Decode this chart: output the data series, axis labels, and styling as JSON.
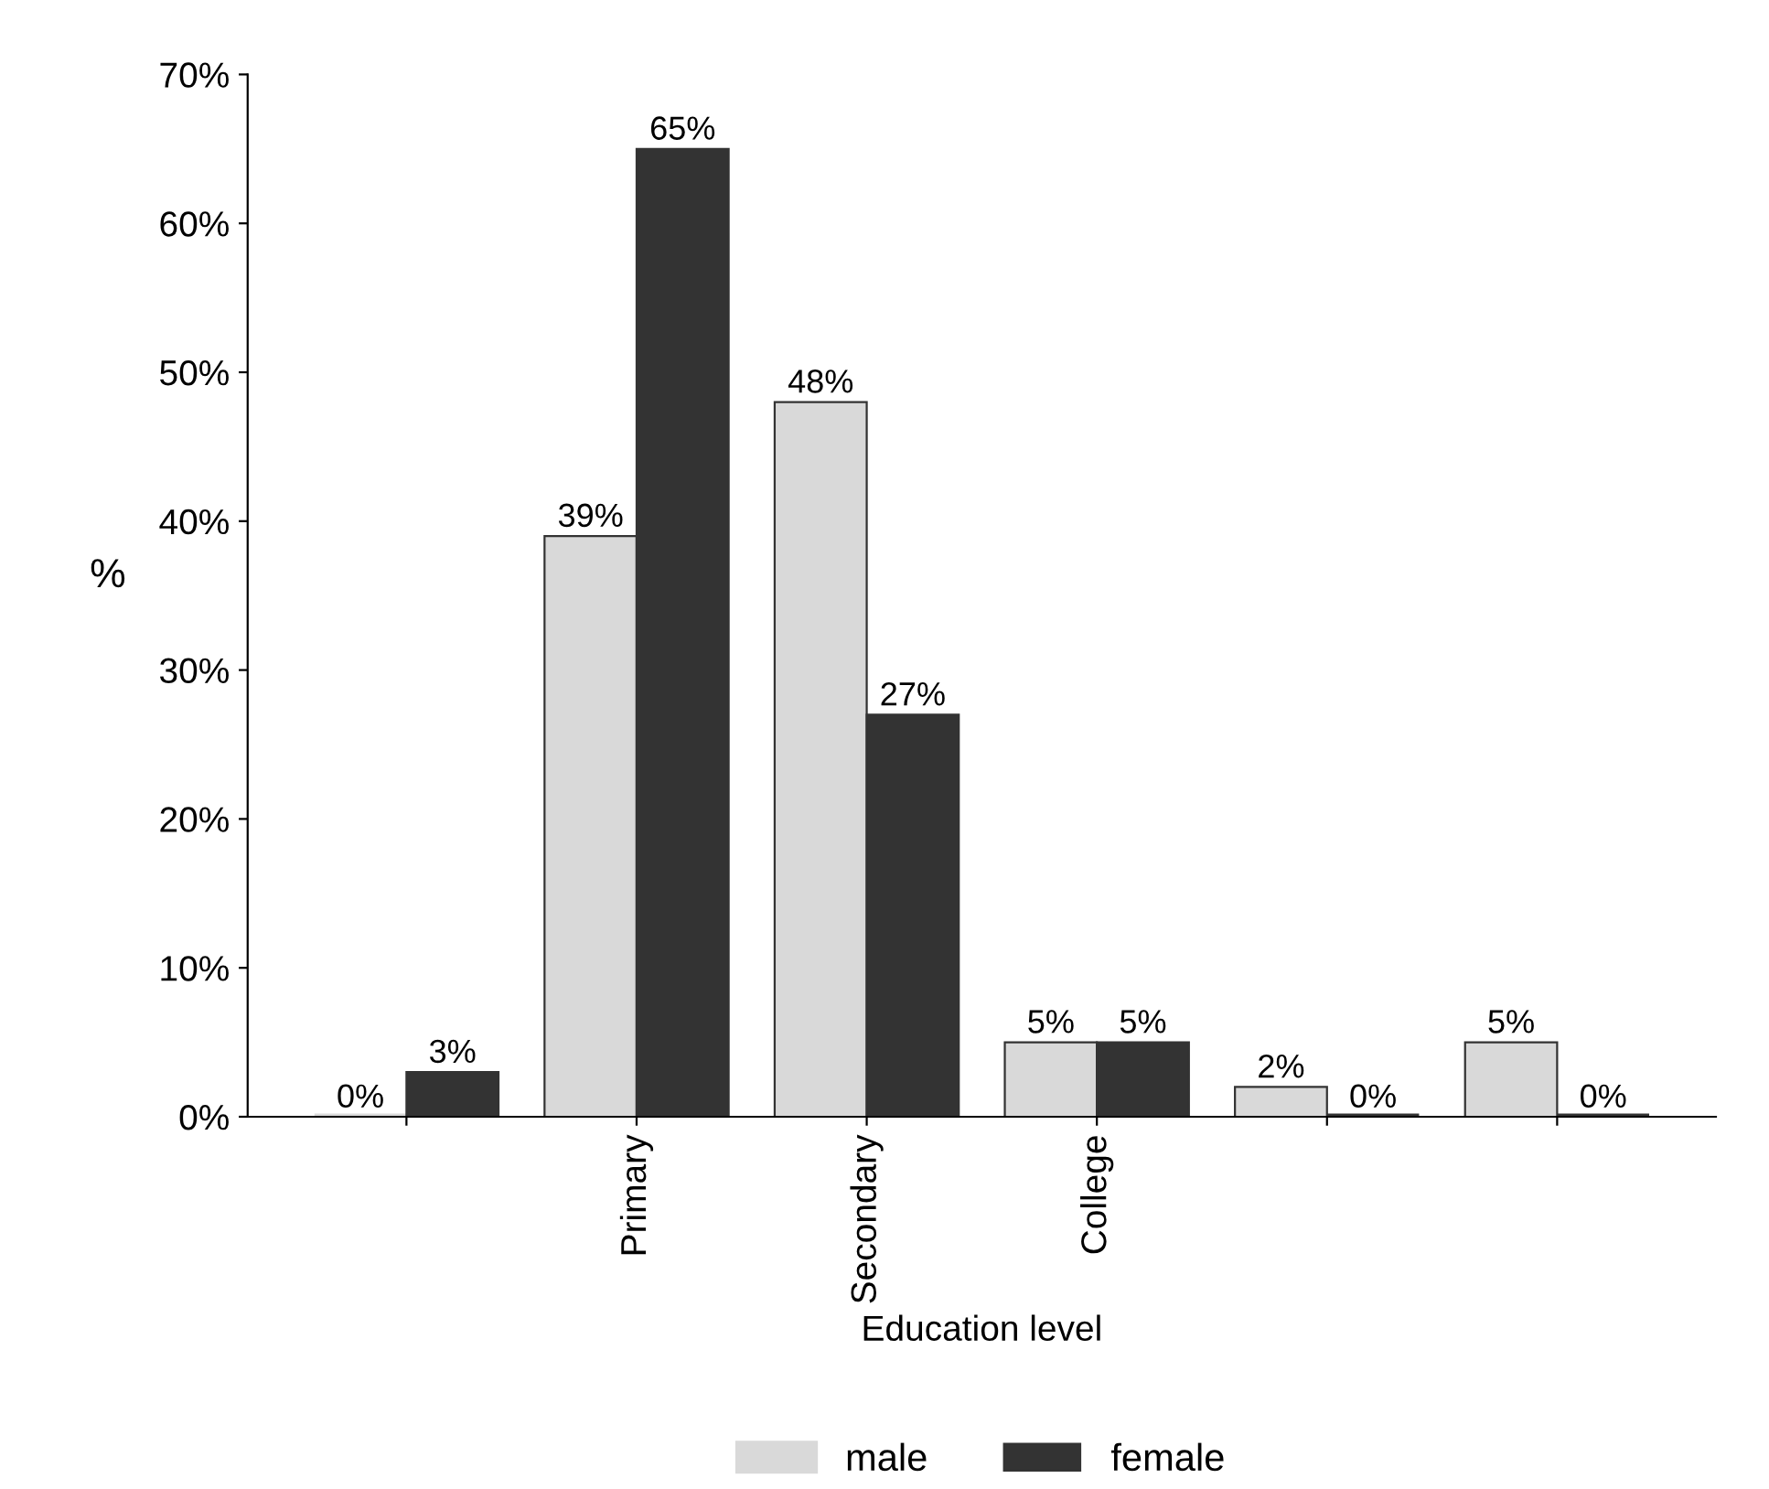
{
  "chart_data": {
    "type": "bar",
    "xlabel": "Education level",
    "ylabel": "%",
    "categories": [
      null,
      "Primary",
      "Secondary",
      "College",
      null,
      null
    ],
    "series": [
      {
        "name": "male",
        "color": "#d9d9d9",
        "values": [
          0,
          39,
          48,
          5,
          2,
          5
        ],
        "value_labels": [
          "0%",
          "39%",
          "48%",
          "5%",
          "2%",
          "5%"
        ]
      },
      {
        "name": "female",
        "color": "#333333",
        "values": [
          3,
          65,
          27,
          5,
          0,
          0
        ],
        "value_labels": [
          "3%",
          "65%",
          "27%",
          "5%",
          "0%",
          "0%"
        ]
      }
    ],
    "ylim": [
      0,
      70
    ],
    "yticks": [
      {
        "value": 0,
        "label": "0%"
      },
      {
        "value": 10,
        "label": "10%"
      },
      {
        "value": 20,
        "label": "20%"
      },
      {
        "value": 30,
        "label": "30%"
      },
      {
        "value": 40,
        "label": "40%"
      },
      {
        "value": 50,
        "label": "50%"
      },
      {
        "value": 60,
        "label": "60%"
      },
      {
        "value": 70,
        "label": "70%"
      }
    ],
    "grid": false,
    "legend": "bottom"
  }
}
